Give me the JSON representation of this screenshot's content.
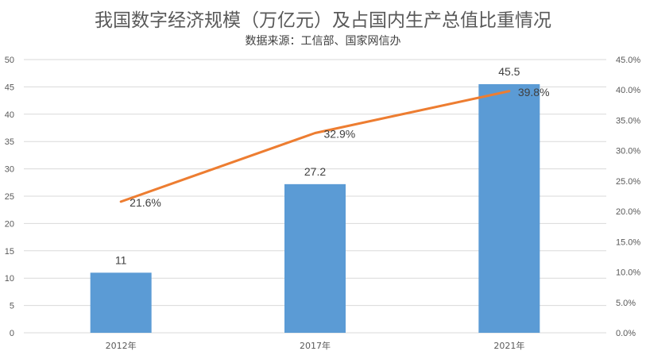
{
  "chart_data": {
    "type": "bar",
    "title": "我国数字经济规模（万亿元）及占国内生产总值比重情况",
    "subtitle": "数据来源：工信部、国家网信办",
    "categories": [
      "2012年",
      "2017年",
      "2021年"
    ],
    "series": [
      {
        "type": "bar",
        "axis": "left",
        "color": "#5B9BD5",
        "values": [
          11,
          27.2,
          45.5
        ],
        "labels": [
          "11",
          "27.2",
          "45.5"
        ]
      },
      {
        "type": "line",
        "axis": "right",
        "color": "#ED7D31",
        "values": [
          21.6,
          32.9,
          39.8
        ],
        "labels": [
          "21.6%",
          "32.9%",
          "39.8%"
        ]
      }
    ],
    "y_left": {
      "min": 0,
      "max": 50,
      "step": 5,
      "ticks": [
        "0",
        "5",
        "10",
        "15",
        "20",
        "25",
        "30",
        "35",
        "40",
        "45",
        "50"
      ]
    },
    "y_right": {
      "min": 0,
      "max": 45,
      "step": 5,
      "ticks": [
        "0.0%",
        "5.0%",
        "10.0%",
        "15.0%",
        "20.0%",
        "25.0%",
        "30.0%",
        "35.0%",
        "40.0%",
        "45.0%"
      ]
    },
    "grid": true,
    "legend": "none",
    "colors": {
      "gridline": "#D9D9D9",
      "bar": "#5B9BD5",
      "line": "#ED7D31"
    }
  }
}
